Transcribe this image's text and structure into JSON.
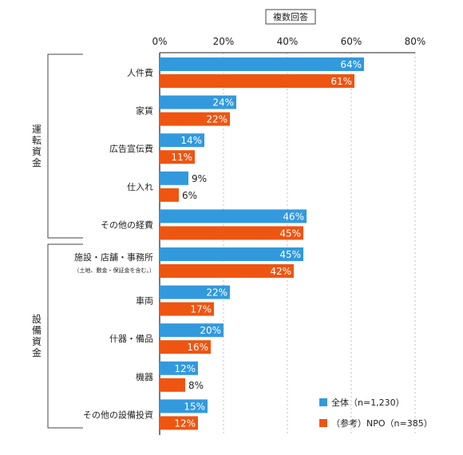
{
  "chart_data": {
    "type": "bar",
    "orientation": "horizontal",
    "note": "複数回答",
    "xlim": [
      0,
      80
    ],
    "xticks": [
      "0%",
      "20%",
      "40%",
      "60%",
      "80%"
    ],
    "grid": true,
    "legend_position": "bottom-right",
    "groups": [
      {
        "label": "運転資金",
        "categories": [
          "人件費",
          "家賃",
          "広告宣伝費",
          "仕入れ",
          "その他の経費"
        ]
      },
      {
        "label": "設備資金",
        "categories": [
          "施設・店舗・事務所",
          "車両",
          "什器・備品",
          "機器",
          "その他の設備投資"
        ]
      }
    ],
    "categories": [
      "人件費",
      "家賃",
      "広告宣伝費",
      "仕入れ",
      "その他の経費",
      "施設・店舗・事務所",
      "車両",
      "什器・備品",
      "機器",
      "その他の設備投資"
    ],
    "category_notes": [
      "",
      "",
      "",
      "",
      "",
      "（土地、敷金・保証金を含む。）",
      "",
      "",
      "",
      ""
    ],
    "series": [
      {
        "name": "全体（n=1,230）",
        "color": "#3399dd",
        "values": [
          64,
          24,
          14,
          9,
          46,
          45,
          22,
          20,
          12,
          15
        ]
      },
      {
        "name": "（参考）NPO（n=385）",
        "color": "#ee5511",
        "values": [
          61,
          22,
          11,
          6,
          45,
          42,
          17,
          16,
          8,
          12
        ]
      }
    ]
  }
}
